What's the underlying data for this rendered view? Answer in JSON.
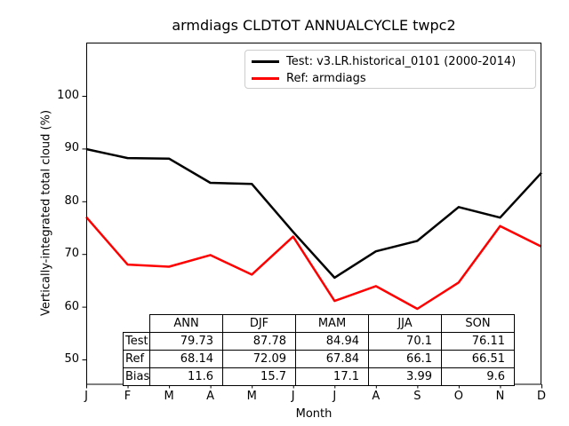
{
  "chart_data": {
    "type": "line",
    "title": "armdiags CLDTOT ANNUALCYCLE twpc2",
    "xlabel": "Month",
    "ylabel": "Vertically-integrated total cloud (%)",
    "categories": [
      "J",
      "F",
      "M",
      "A",
      "M",
      "J",
      "J",
      "A",
      "S",
      "O",
      "N",
      "D"
    ],
    "yticks": [
      100,
      90,
      80,
      70,
      60,
      50
    ],
    "ylim": [
      45.3,
      110.1
    ],
    "grid": false,
    "legend_position": "upper center",
    "series": [
      {
        "name": "Test: v3.LR.historical_0101 (2000-2014)",
        "color": "#000000",
        "values": [
          89.9,
          88.2,
          88.1,
          83.5,
          83.3,
          74.2,
          65.5,
          70.5,
          72.5,
          78.9,
          76.9,
          85.4
        ]
      },
      {
        "name": "Ref: armdiags",
        "color": "#ff0000",
        "values": [
          77.0,
          68.0,
          67.6,
          69.8,
          66.1,
          73.3,
          61.1,
          63.9,
          59.6,
          64.6,
          75.3,
          71.4
        ]
      }
    ]
  },
  "table": {
    "columns": [
      "ANN",
      "DJF",
      "MAM",
      "JJA",
      "SON"
    ],
    "rows": [
      {
        "label": "Test",
        "values": [
          "79.73",
          "87.78",
          "84.94",
          "70.1",
          "76.11"
        ]
      },
      {
        "label": "Ref",
        "values": [
          "68.14",
          "72.09",
          "67.84",
          "66.1",
          "66.51"
        ]
      },
      {
        "label": "Bias",
        "values": [
          "11.6",
          "15.7",
          "17.1",
          "3.99",
          "9.6"
        ]
      }
    ]
  },
  "colors": {
    "axis": "#000000",
    "legend_border": "#cccccc",
    "background": "#ffffff"
  }
}
